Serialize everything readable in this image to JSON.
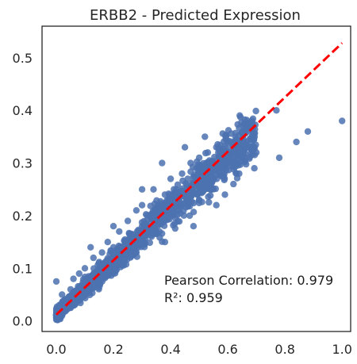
{
  "chart_data": {
    "type": "scatter",
    "title": "ERBB2 - Predicted Expression",
    "xlabel": "",
    "ylabel": "",
    "xlim": [
      -0.05,
      1.03
    ],
    "ylim": [
      -0.02,
      0.56
    ],
    "x_ticks": [
      0.0,
      0.2,
      0.4,
      0.6,
      0.8,
      1.0
    ],
    "x_tick_labels": [
      "0.0",
      "0.2",
      "0.4",
      "0.6",
      "0.8",
      "1.0"
    ],
    "y_ticks": [
      0.0,
      0.1,
      0.2,
      0.3,
      0.4,
      0.5
    ],
    "y_tick_labels": [
      "0.0",
      "0.1",
      "0.2",
      "0.3",
      "0.4",
      "0.5"
    ],
    "grid": false,
    "point_color": "#4c72b0",
    "reference_line": {
      "color": "#ff0000",
      "style": "dashed",
      "x": [
        0.0,
        1.0
      ],
      "y": [
        0.012,
        0.528
      ]
    },
    "annotations": [
      "Pearson Correlation: 0.979",
      "R²: 0.959"
    ],
    "points_sample": [
      [
        0.0,
        0.01
      ],
      [
        0.0,
        0.02
      ],
      [
        0.01,
        0.005
      ],
      [
        0.01,
        0.03
      ],
      [
        0.02,
        0.01
      ],
      [
        0.02,
        0.05
      ],
      [
        0.0,
        0.075
      ],
      [
        0.03,
        0.02
      ],
      [
        0.04,
        0.04
      ],
      [
        0.05,
        0.06
      ],
      [
        0.05,
        0.03
      ],
      [
        0.06,
        0.08
      ],
      [
        0.07,
        0.05
      ],
      [
        0.08,
        0.09
      ],
      [
        0.08,
        0.04
      ],
      [
        0.1,
        0.06
      ],
      [
        0.1,
        0.1
      ],
      [
        0.12,
        0.08
      ],
      [
        0.13,
        0.12
      ],
      [
        0.14,
        0.07
      ],
      [
        0.15,
        0.1
      ],
      [
        0.16,
        0.13
      ],
      [
        0.18,
        0.11
      ],
      [
        0.18,
        0.15
      ],
      [
        0.2,
        0.1
      ],
      [
        0.2,
        0.14
      ],
      [
        0.22,
        0.12
      ],
      [
        0.22,
        0.17
      ],
      [
        0.24,
        0.15
      ],
      [
        0.25,
        0.19
      ],
      [
        0.26,
        0.13
      ],
      [
        0.28,
        0.16
      ],
      [
        0.28,
        0.21
      ],
      [
        0.3,
        0.18
      ],
      [
        0.3,
        0.22
      ],
      [
        0.32,
        0.17
      ],
      [
        0.33,
        0.2
      ],
      [
        0.34,
        0.25
      ],
      [
        0.35,
        0.19
      ],
      [
        0.36,
        0.22
      ],
      [
        0.38,
        0.24
      ],
      [
        0.38,
        0.2
      ],
      [
        0.4,
        0.23
      ],
      [
        0.4,
        0.27
      ],
      [
        0.42,
        0.25
      ],
      [
        0.43,
        0.21
      ],
      [
        0.44,
        0.28
      ],
      [
        0.45,
        0.24
      ],
      [
        0.46,
        0.27
      ],
      [
        0.47,
        0.3
      ],
      [
        0.48,
        0.26
      ],
      [
        0.49,
        0.29
      ],
      [
        0.5,
        0.31
      ],
      [
        0.5,
        0.23
      ],
      [
        0.52,
        0.28
      ],
      [
        0.53,
        0.32
      ],
      [
        0.54,
        0.27
      ],
      [
        0.55,
        0.3
      ],
      [
        0.56,
        0.33
      ],
      [
        0.57,
        0.29
      ],
      [
        0.58,
        0.32
      ],
      [
        0.59,
        0.3
      ],
      [
        0.6,
        0.34
      ],
      [
        0.61,
        0.31
      ],
      [
        0.62,
        0.33
      ],
      [
        0.63,
        0.3
      ],
      [
        0.65,
        0.31
      ],
      [
        0.68,
        0.37
      ],
      [
        0.69,
        0.33
      ],
      [
        0.7,
        0.32
      ],
      [
        0.66,
        0.36
      ],
      [
        0.64,
        0.28
      ],
      [
        0.62,
        0.26
      ],
      [
        0.59,
        0.24
      ],
      [
        0.56,
        0.22
      ],
      [
        0.48,
        0.18
      ],
      [
        0.38,
        0.15
      ],
      [
        0.28,
        0.13
      ],
      [
        0.12,
        0.14
      ],
      [
        0.2,
        0.18
      ],
      [
        0.3,
        0.25
      ],
      [
        0.37,
        0.3
      ],
      [
        0.45,
        0.33
      ],
      [
        0.52,
        0.35
      ],
      [
        0.77,
        0.4
      ],
      [
        0.88,
        0.36
      ],
      [
        0.84,
        0.34
      ],
      [
        0.78,
        0.31
      ],
      [
        1.0,
        0.38
      ]
    ]
  }
}
